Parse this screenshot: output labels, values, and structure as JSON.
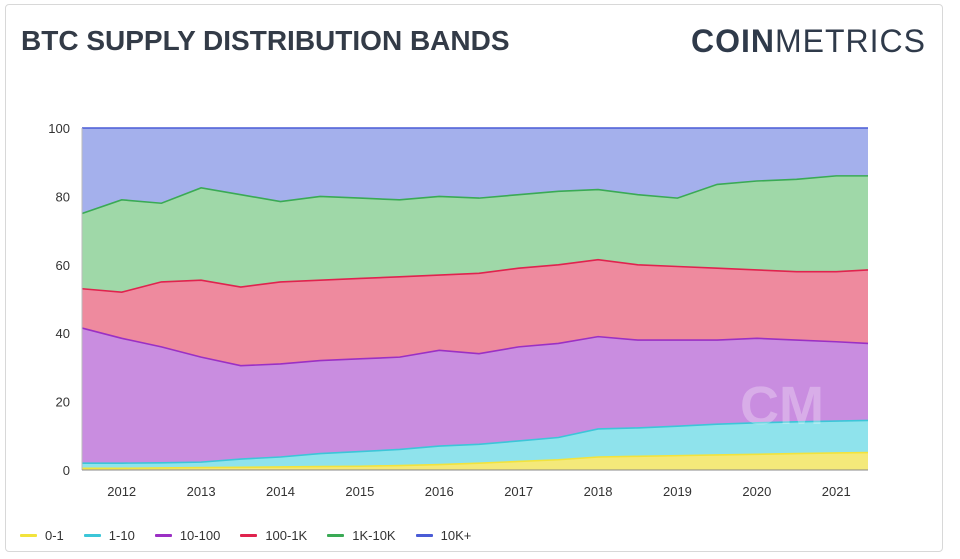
{
  "header": {
    "title": "BTC SUPPLY DISTRIBUTION BANDS",
    "brand_bold": "COIN",
    "brand_light": "METRICS"
  },
  "chart_data": {
    "type": "area",
    "stacked": true,
    "title": "BTC SUPPLY DISTRIBUTION BANDS",
    "xlabel": "",
    "ylabel": "",
    "ylim": [
      0,
      100
    ],
    "yticks": [
      0,
      20,
      40,
      60,
      80,
      100
    ],
    "xlim": [
      2011.5,
      2021.4
    ],
    "xticks": [
      2012,
      2013,
      2014,
      2015,
      2016,
      2017,
      2018,
      2019,
      2020,
      2021
    ],
    "x": [
      2011.5,
      2012.0,
      2012.5,
      2013.0,
      2013.5,
      2014.0,
      2014.5,
      2015.0,
      2015.5,
      2016.0,
      2016.5,
      2017.0,
      2017.5,
      2018.0,
      2018.5,
      2019.0,
      2019.5,
      2020.0,
      2020.5,
      2021.0,
      2021.4
    ],
    "series": [
      {
        "name": "0-1",
        "color": "#f2e33c",
        "fill": "#f4e97a",
        "values": [
          0.5,
          0.5,
          0.6,
          0.7,
          0.8,
          0.9,
          1.0,
          1.1,
          1.3,
          1.6,
          2.0,
          2.5,
          3.0,
          3.8,
          4.0,
          4.2,
          4.4,
          4.6,
          4.8,
          5.0,
          5.1
        ]
      },
      {
        "name": "1-10",
        "color": "#3cc6d8",
        "fill": "#8fe3ec",
        "values": [
          2.0,
          2.0,
          2.1,
          2.3,
          3.2,
          3.8,
          4.8,
          5.4,
          6.0,
          7.0,
          7.5,
          8.5,
          9.5,
          12.0,
          12.3,
          12.8,
          13.4,
          13.8,
          14.1,
          14.3,
          14.5
        ]
      },
      {
        "name": "10-100",
        "color": "#9b30c4",
        "fill": "#c98de0",
        "values": [
          41.5,
          38.5,
          36.0,
          33.0,
          30.5,
          31.0,
          32.0,
          32.5,
          33.0,
          35.0,
          34.0,
          36.0,
          37.0,
          39.0,
          38.0,
          38.0,
          38.0,
          38.5,
          38.0,
          37.5,
          37.0
        ]
      },
      {
        "name": "100-1K",
        "color": "#e0234e",
        "fill": "#ee8a9e",
        "values": [
          53.0,
          52.0,
          55.0,
          55.5,
          53.5,
          55.0,
          55.5,
          56.0,
          56.5,
          57.0,
          57.5,
          59.0,
          60.0,
          61.5,
          60.0,
          59.5,
          59.0,
          58.5,
          58.0,
          58.0,
          58.5
        ]
      },
      {
        "name": "1K-10K",
        "color": "#3aaa55",
        "fill": "#9fd8a8",
        "values": [
          75.0,
          79.0,
          78.0,
          82.5,
          80.5,
          78.5,
          80.0,
          79.5,
          79.0,
          80.0,
          79.5,
          80.5,
          81.5,
          82.0,
          80.5,
          79.5,
          83.5,
          84.5,
          85.0,
          86.0,
          86.0
        ]
      },
      {
        "name": "10K+",
        "color": "#4a5cd6",
        "fill": "#a4b0ec",
        "values": [
          100,
          100,
          100,
          100,
          100,
          100,
          100,
          100,
          100,
          100,
          100,
          100,
          100,
          100,
          100,
          100,
          100,
          100,
          100,
          100,
          100
        ]
      }
    ],
    "legend_position": "bottom-left",
    "grid": false,
    "watermark": "CM"
  }
}
